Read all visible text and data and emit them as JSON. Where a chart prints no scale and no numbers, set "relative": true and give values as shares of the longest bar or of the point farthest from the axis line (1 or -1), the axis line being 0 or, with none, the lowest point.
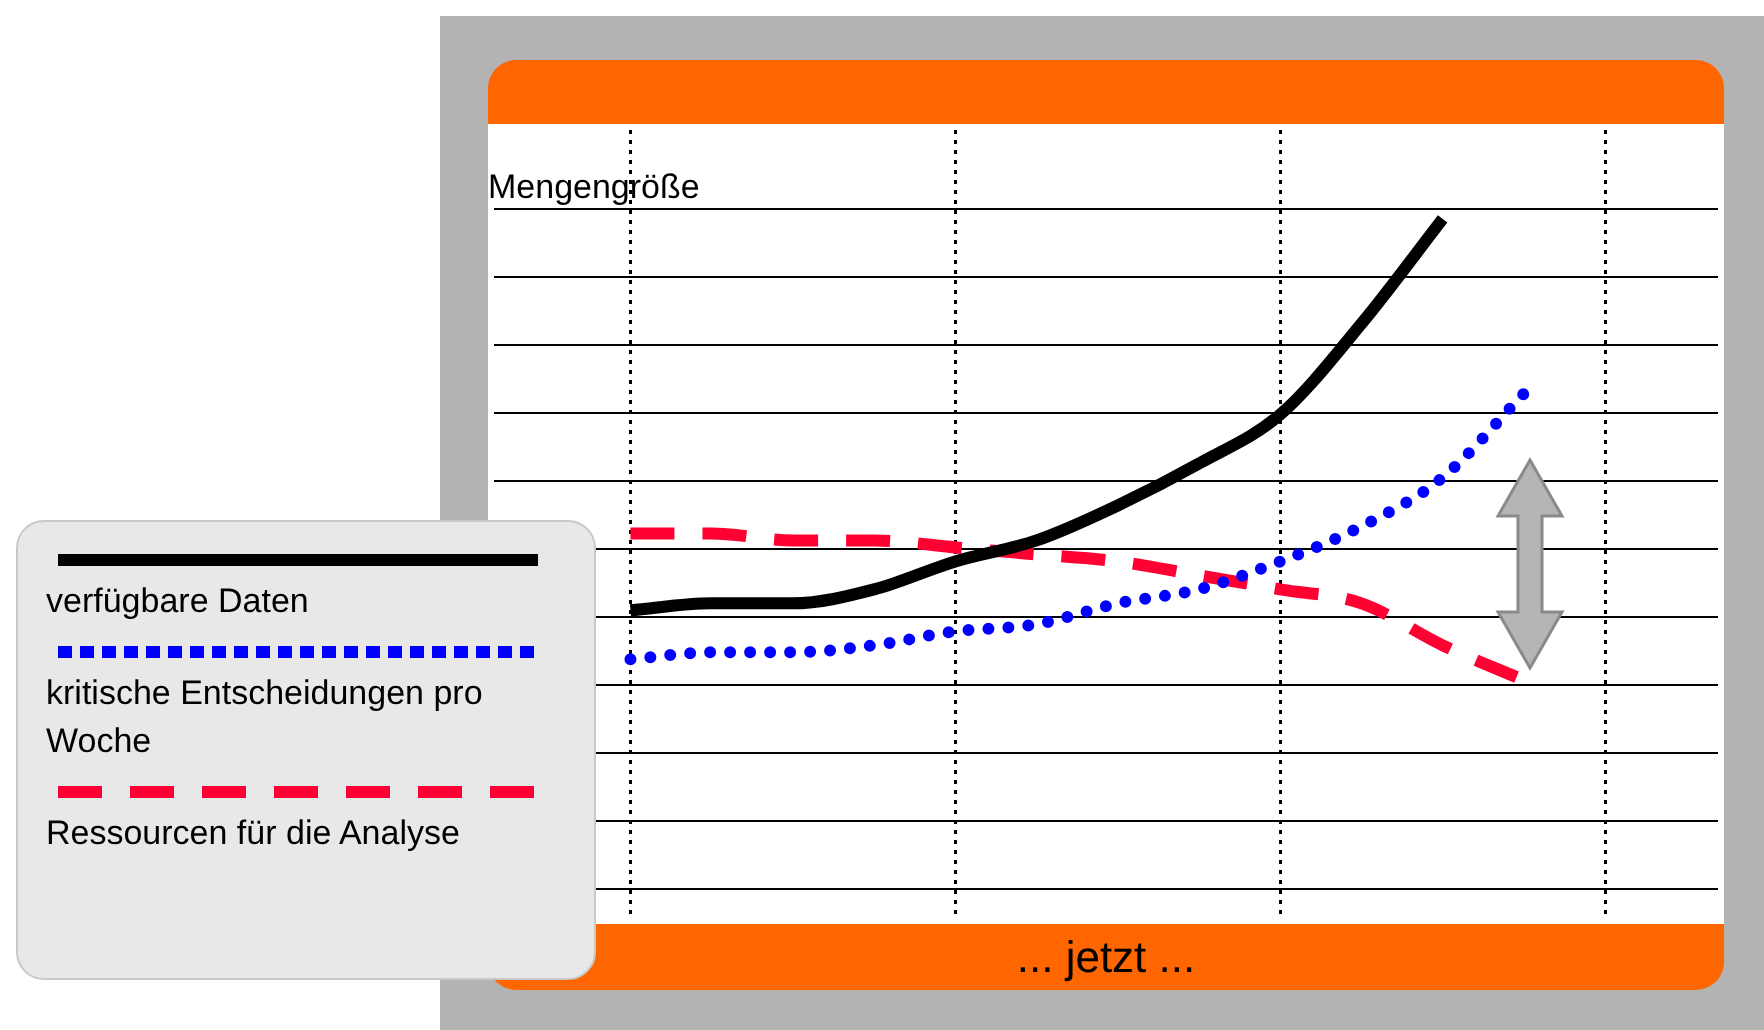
{
  "chart_data": {
    "type": "line",
    "relative": true,
    "ylabel": "Mengengröße",
    "annotations": [
      "... jetzt ..."
    ],
    "categories": [
      null,
      null,
      null,
      null,
      null,
      null,
      null,
      null,
      null,
      null,
      null,
      null,
      null
    ],
    "grid": true,
    "tick_labels": false,
    "legend": "left",
    "marker": "none",
    "series": [
      {
        "name": "verfügbare Daten",
        "color": "#000000",
        "line_style": "solid",
        "values": [
          0.44,
          0.45,
          0.45,
          0.47,
          0.51,
          0.54,
          0.59,
          0.65,
          0.72,
          0.85,
          1,
          null,
          null
        ]
      },
      {
        "name": "kritische Entscheidungen pro Woche",
        "color": "#0000ff",
        "line_style": "dotted",
        "values": [
          0.37,
          0.38,
          0.38,
          0.39,
          0.41,
          0.42,
          0.45,
          0.47,
          0.51,
          0.56,
          0.63,
          0.75,
          null
        ]
      },
      {
        "name": "Ressourcen für die Analyse",
        "color": "#ff0033",
        "line_style": "dashed",
        "values": [
          0.55,
          0.55,
          0.54,
          0.54,
          0.53,
          0.52,
          0.51,
          0.49,
          0.47,
          0.45,
          0.39,
          0.34,
          null
        ]
      }
    ]
  }
}
